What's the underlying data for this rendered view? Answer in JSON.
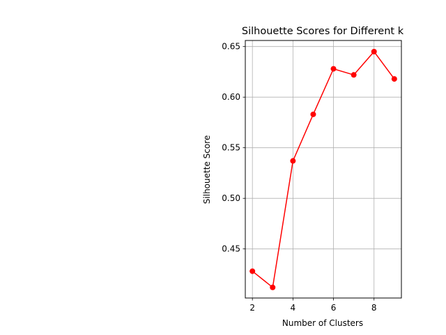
{
  "chart_data": {
    "type": "line",
    "title": "Silhouette Scores for Different k",
    "xlabel": "Number of Clusters",
    "ylabel": "Silhouette Score",
    "xlim": [
      1.65,
      9.35
    ],
    "ylim": [
      0.4015,
      0.656
    ],
    "xticks": [
      2,
      4,
      6,
      8
    ],
    "yticks": [
      0.45,
      0.5,
      0.55,
      0.6,
      0.65
    ],
    "ytick_labels": [
      "0.45",
      "0.50",
      "0.55",
      "0.60",
      "0.65"
    ],
    "grid": true,
    "line_color": "#ff0000",
    "marker": "circle",
    "series": [
      {
        "x": [
          2,
          3,
          4,
          5,
          6,
          7,
          8,
          9
        ],
        "values": [
          0.428,
          0.412,
          0.537,
          0.583,
          0.628,
          0.622,
          0.645,
          0.618
        ]
      }
    ]
  }
}
